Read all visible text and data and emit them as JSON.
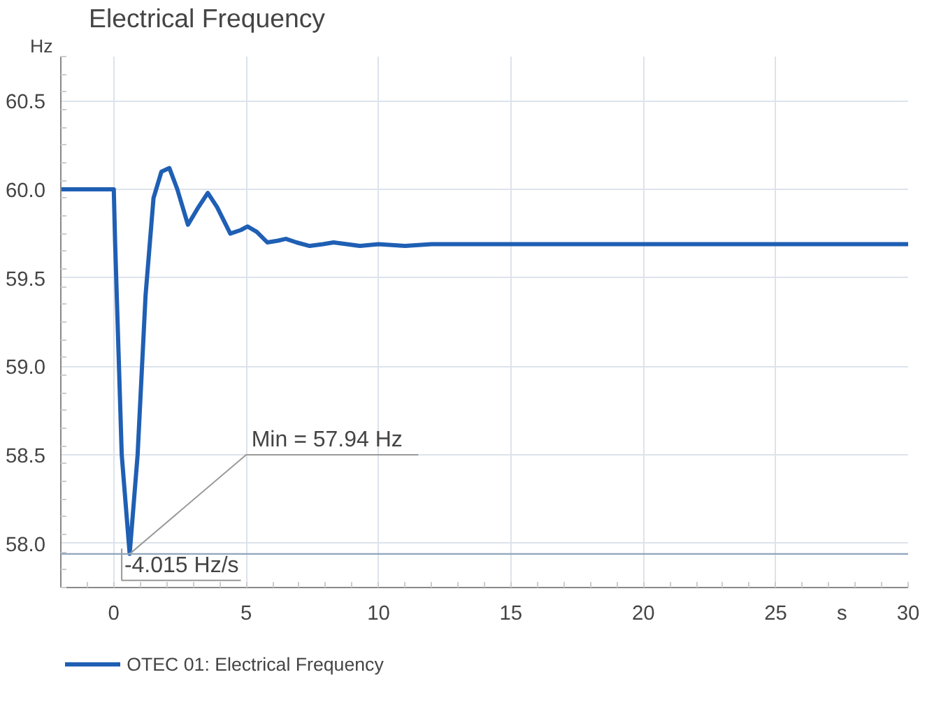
{
  "chart_data": {
    "type": "line",
    "title": "Electrical Frequency",
    "xlabel": "s",
    "ylabel": "Hz",
    "x": [
      -2,
      0,
      0.05,
      0.3,
      0.6,
      0.9,
      1.2,
      1.5,
      1.8,
      2.1,
      2.4,
      2.8,
      3.2,
      3.55,
      3.9,
      4.4,
      4.8,
      5.05,
      5.4,
      5.8,
      6.2,
      6.5,
      6.9,
      7.4,
      7.9,
      8.3,
      8.8,
      9.3,
      10,
      11,
      12,
      15,
      20,
      25,
      30
    ],
    "series": [
      {
        "name": "OTEC 01: Electrical Frequency",
        "color": "#1f5fb4",
        "values": [
          60.0,
          60.0,
          59.7,
          58.5,
          57.94,
          58.5,
          59.4,
          59.95,
          60.1,
          60.12,
          60.0,
          59.8,
          59.9,
          59.98,
          59.9,
          59.75,
          59.77,
          59.79,
          59.76,
          59.7,
          59.71,
          59.72,
          59.7,
          59.68,
          59.69,
          59.7,
          59.69,
          59.68,
          59.69,
          59.68,
          59.69,
          59.69,
          59.69,
          59.69,
          59.69
        ]
      }
    ],
    "xlim": [
      -2,
      30
    ],
    "ylim": [
      57.75,
      60.75
    ],
    "xticks": [
      0,
      5,
      10,
      15,
      20,
      25,
      30
    ],
    "yticks": [
      {
        "value": 58,
        "label": "58.0"
      },
      {
        "value": 58.5,
        "label": "58.5"
      },
      {
        "value": 59,
        "label": "59.0"
      },
      {
        "value": 59.5,
        "label": "59.5"
      },
      {
        "value": 60,
        "label": "60.0"
      },
      {
        "value": 60.5,
        "label": "60.5"
      }
    ],
    "grid": true,
    "legend": "bottom",
    "marker": "none",
    "line_style": "solid",
    "ref_lines": [
      {
        "axis": "y",
        "value": 57.94,
        "color": "#8fa6bd"
      }
    ],
    "annotations": [
      {
        "text": "Min = 57.94 Hz",
        "x": 0.6,
        "y": 57.94
      },
      {
        "text": "-4.015 Hz/s",
        "x": 0.6,
        "y": 57.94
      }
    ]
  }
}
